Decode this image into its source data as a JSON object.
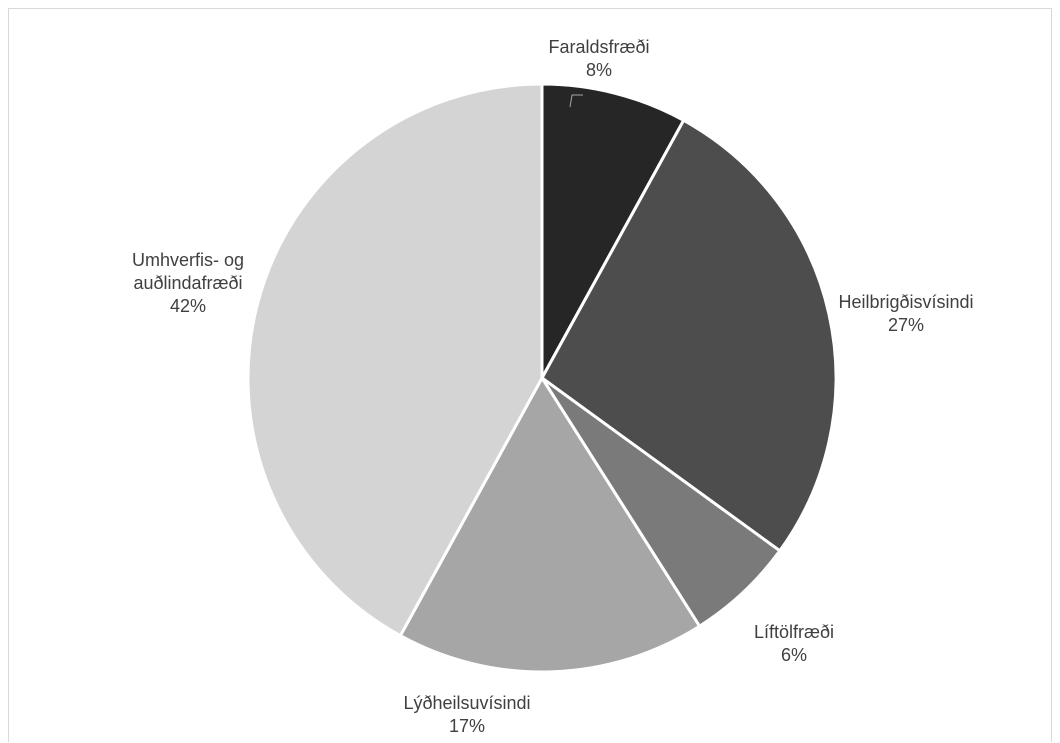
{
  "chart_data": {
    "type": "pie",
    "title": "",
    "slices": [
      {
        "name": "Faraldsfræði",
        "label_lines": [
          "Faraldsfræði"
        ],
        "value": 8,
        "value_label": "8%",
        "color": "#262626"
      },
      {
        "name": "Heilbrigðisvísindi",
        "label_lines": [
          "Heilbrigðisvísindi"
        ],
        "value": 27,
        "value_label": "27%",
        "color": "#4d4d4d"
      },
      {
        "name": "Líftölfræði",
        "label_lines": [
          "Líftölfræði"
        ],
        "value": 6,
        "value_label": "6%",
        "color": "#7a7a7a"
      },
      {
        "name": "Lýðheilsuvísindi",
        "label_lines": [
          "Lýðheilsuvísindi"
        ],
        "value": 17,
        "value_label": "17%",
        "color": "#a6a6a6"
      },
      {
        "name": "Umhverfis- og auðlindafræði",
        "label_lines": [
          "Umhverfis- og",
          "auðlindafræði"
        ],
        "value": 42,
        "value_label": "42%",
        "color": "#d4d4d4"
      }
    ],
    "start_angle_deg": 0,
    "direction": "clockwise",
    "legend": "none"
  }
}
